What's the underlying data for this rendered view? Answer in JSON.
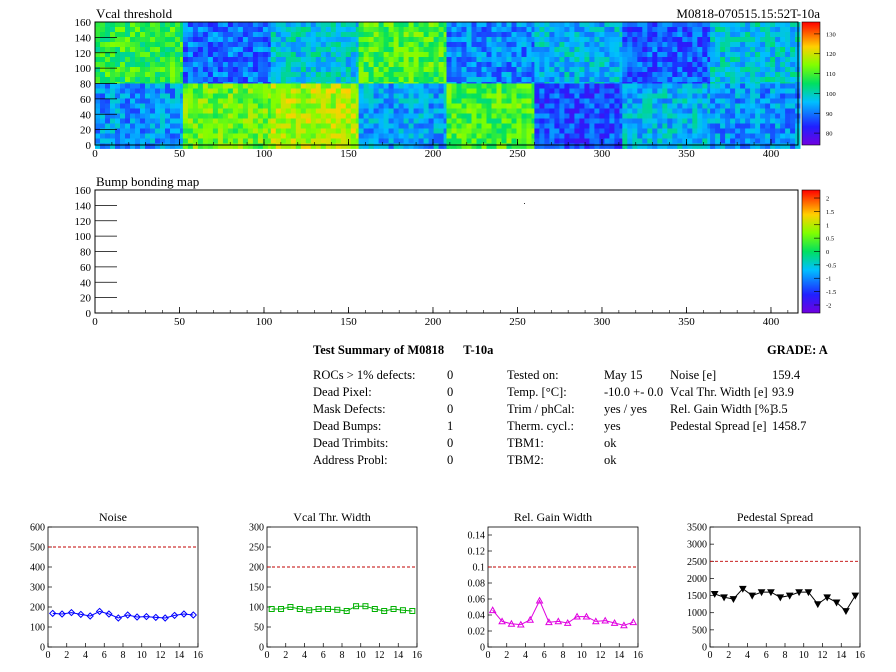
{
  "header": {
    "module_id": "M0818-070515.15:52T-10a"
  },
  "vcal_map": {
    "title": "Vcal threshold",
    "x_ticks": [
      "0",
      "50",
      "100",
      "150",
      "200",
      "250",
      "300",
      "350",
      "400"
    ],
    "y_ticks": [
      "0",
      "20",
      "40",
      "60",
      "80",
      "100",
      "120",
      "140",
      "160"
    ],
    "palette_ticks": [
      "130",
      "120",
      "110",
      "100",
      "90",
      "80"
    ]
  },
  "bump_map": {
    "title": "Bump bonding map",
    "x_ticks": [
      "0",
      "50",
      "100",
      "150",
      "200",
      "250",
      "300",
      "350",
      "400"
    ],
    "y_ticks": [
      "0",
      "20",
      "40",
      "60",
      "80",
      "100",
      "120",
      "140",
      "160"
    ],
    "palette_ticks": [
      "2",
      "1.5",
      "1",
      "0.5",
      "0",
      "-0.5",
      "-1",
      "-1.5",
      "-2"
    ]
  },
  "summary": {
    "title": "Test Summary of M0818",
    "temp_label": "T-10a",
    "grade": "GRADE:  A",
    "defects": [
      {
        "label": "ROCs > 1% defects:",
        "value": "0"
      },
      {
        "label": "Dead Pixel:",
        "value": "0"
      },
      {
        "label": "Mask Defects:",
        "value": "0"
      },
      {
        "label": "Dead Bumps:",
        "value": "1"
      },
      {
        "label": "Dead Trimbits:",
        "value": "0"
      },
      {
        "label": "Address Probl:",
        "value": "0"
      }
    ],
    "conditions": [
      {
        "label": "Tested on:",
        "value": "May 15"
      },
      {
        "label": "Temp. [°C]:",
        "value": "-10.0 +- 0.0"
      },
      {
        "label": "Trim / phCal:",
        "value": "yes / yes"
      },
      {
        "label": "Therm. cycl.:",
        "value": "yes"
      },
      {
        "label": "TBM1:",
        "value": "ok"
      },
      {
        "label": "TBM2:",
        "value": "ok"
      }
    ],
    "results": [
      {
        "label": "Noise [e]",
        "value": "159.4"
      },
      {
        "label": "Vcal Thr. Width [e]",
        "value": "93.9"
      },
      {
        "label": "Rel. Gain Width [%]",
        "value": "3.5"
      },
      {
        "label": "Pedestal Spread [e]",
        "value": "1458.7"
      }
    ]
  },
  "chart_data": [
    {
      "type": "line",
      "title": "Noise",
      "color": "#0000ff",
      "marker": "diamond",
      "x": [
        0.5,
        1.5,
        2.5,
        3.5,
        4.5,
        5.5,
        6.5,
        7.5,
        8.5,
        9.5,
        10.5,
        11.5,
        12.5,
        13.5,
        14.5,
        15.5
      ],
      "values": [
        168,
        165,
        172,
        163,
        155,
        178,
        165,
        145,
        160,
        150,
        152,
        148,
        145,
        158,
        165,
        160
      ],
      "xlim": [
        0,
        16
      ],
      "ylim": [
        0,
        600
      ],
      "x_ticks": [
        "0",
        "2",
        "4",
        "6",
        "8",
        "10",
        "12",
        "14",
        "16"
      ],
      "y_ticks": [
        "0",
        "100",
        "200",
        "300",
        "400",
        "500",
        "600"
      ],
      "limit": 500
    },
    {
      "type": "line",
      "title": "Vcal Thr. Width",
      "color": "#00b000",
      "marker": "square",
      "x": [
        0.5,
        1.5,
        2.5,
        3.5,
        4.5,
        5.5,
        6.5,
        7.5,
        8.5,
        9.5,
        10.5,
        11.5,
        12.5,
        13.5,
        14.5,
        15.5
      ],
      "values": [
        95,
        95,
        100,
        95,
        92,
        95,
        95,
        93,
        90,
        102,
        102,
        95,
        90,
        95,
        92,
        90
      ],
      "xlim": [
        0,
        16
      ],
      "ylim": [
        0,
        300
      ],
      "x_ticks": [
        "0",
        "2",
        "4",
        "6",
        "8",
        "10",
        "12",
        "14",
        "16"
      ],
      "y_ticks": [
        "0",
        "50",
        "100",
        "150",
        "200",
        "250",
        "300"
      ],
      "limit": 200
    },
    {
      "type": "line",
      "title": "Rel. Gain Width",
      "color": "#e000e0",
      "marker": "triangle",
      "x": [
        0.5,
        1.5,
        2.5,
        3.5,
        4.5,
        5.5,
        6.5,
        7.5,
        8.5,
        9.5,
        10.5,
        11.5,
        12.5,
        13.5,
        14.5,
        15.5
      ],
      "values": [
        0.046,
        0.032,
        0.029,
        0.028,
        0.034,
        0.058,
        0.031,
        0.032,
        0.03,
        0.038,
        0.038,
        0.032,
        0.033,
        0.03,
        0.027,
        0.031
      ],
      "xlim": [
        0,
        16
      ],
      "ylim": [
        0,
        0.15
      ],
      "x_ticks": [
        "0",
        "2",
        "4",
        "6",
        "8",
        "10",
        "12",
        "14",
        "16"
      ],
      "y_ticks": [
        "0",
        "0.02",
        "0.04",
        "0.06",
        "0.08",
        "0.1",
        "0.12",
        "0.14"
      ],
      "limit": 0.1
    },
    {
      "type": "line",
      "title": "Pedestal Spread",
      "color": "#000000",
      "marker": "triangle-down",
      "x": [
        0.5,
        1.5,
        2.5,
        3.5,
        4.5,
        5.5,
        6.5,
        7.5,
        8.5,
        9.5,
        10.5,
        11.5,
        12.5,
        13.5,
        14.5,
        15.5
      ],
      "values": [
        1550,
        1450,
        1400,
        1700,
        1500,
        1600,
        1600,
        1450,
        1500,
        1600,
        1600,
        1250,
        1450,
        1300,
        1050,
        1500
      ],
      "xlim": [
        0,
        16
      ],
      "ylim": [
        0,
        3500
      ],
      "x_ticks": [
        "0",
        "2",
        "4",
        "6",
        "8",
        "10",
        "12",
        "14",
        "16"
      ],
      "y_ticks": [
        "0",
        "500",
        "1000",
        "1500",
        "2000",
        "2500",
        "3000",
        "3500"
      ],
      "limit": 2500
    }
  ]
}
